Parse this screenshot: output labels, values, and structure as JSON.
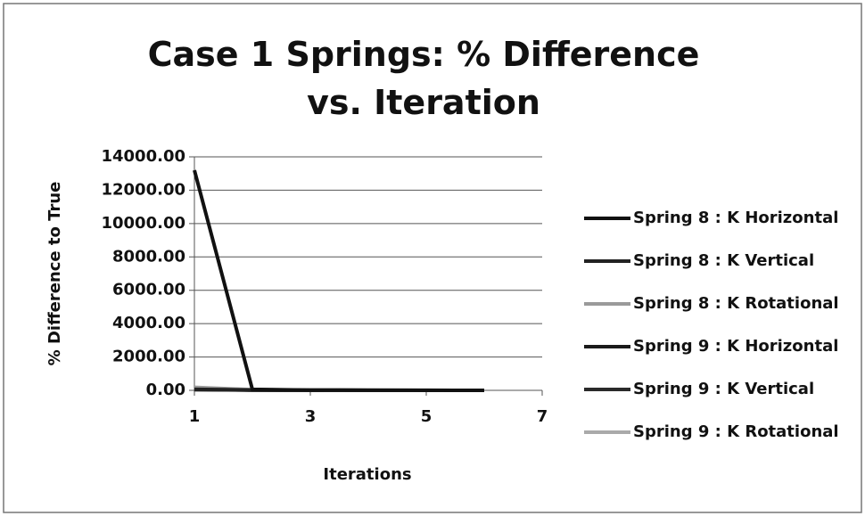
{
  "chart_data": {
    "type": "line",
    "title": "Case 1 Springs: % Difference vs. Iteration",
    "x_label": "Iterations",
    "y_label": "% Difference to True",
    "x": [
      1,
      2,
      3,
      4,
      5,
      6
    ],
    "xlim": [
      1,
      7
    ],
    "xticks": [
      1,
      3,
      5,
      7
    ],
    "ylim": [
      0,
      14000
    ],
    "yticks": [
      {
        "value": 0,
        "label": "0.00"
      },
      {
        "value": 2000,
        "label": "2000.00"
      },
      {
        "value": 4000,
        "label": "4000.00"
      },
      {
        "value": 6000,
        "label": "6000.00"
      },
      {
        "value": 8000,
        "label": "8000.00"
      },
      {
        "value": 10000,
        "label": "10000.00"
      },
      {
        "value": 12000,
        "label": "12000.00"
      },
      {
        "value": 14000,
        "label": "14000.00"
      }
    ],
    "grid": true,
    "legend": "right",
    "series": [
      {
        "name": "Spring 8 : K Horizontal",
        "color": "#111111",
        "values": [
          13200,
          60,
          15,
          8,
          4,
          2
        ]
      },
      {
        "name": "Spring 8 : K Vertical",
        "color": "#222222",
        "values": [
          60,
          20,
          8,
          4,
          2,
          1
        ]
      },
      {
        "name": "Spring 8 : K Rotational",
        "color": "#9a9a9a",
        "values": [
          180,
          40,
          12,
          6,
          3,
          2
        ]
      },
      {
        "name": "Spring 9 : K Horizontal",
        "color": "#1a1a1a",
        "values": [
          50,
          15,
          6,
          3,
          2,
          1
        ]
      },
      {
        "name": "Spring 9 : K Vertical",
        "color": "#2a2a2a",
        "values": [
          40,
          12,
          5,
          3,
          2,
          1
        ]
      },
      {
        "name": "Spring 9 : K Rotational",
        "color": "#aaaaaa",
        "values": [
          150,
          30,
          10,
          5,
          3,
          2
        ]
      }
    ]
  }
}
